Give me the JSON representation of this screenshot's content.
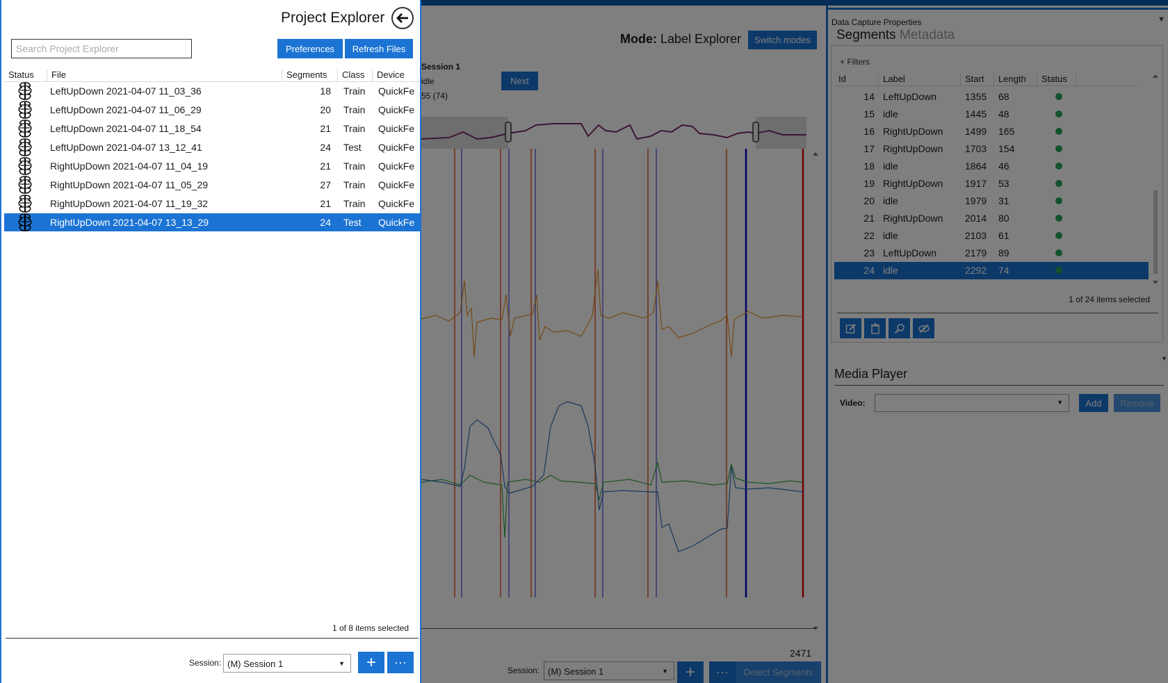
{
  "center": {
    "mode_label": "Mode:",
    "mode_value": "Label Explorer",
    "switch_modes": "Switch modes",
    "session_line": "Session 1",
    "label_line": "idle",
    "range_line": "55 (74)",
    "next": "Next",
    "count": "2471",
    "session_label": "Session:",
    "session_value": "(M) Session 1",
    "add_glyph": "+",
    "more_glyph": "···",
    "detect": "Detect Segments"
  },
  "right": {
    "title": "Data Capture Properties",
    "tab_segments": "Segments",
    "tab_metadata": "Metadata",
    "filters": "+ Filters",
    "columns": [
      "Id",
      "Label",
      "Start",
      "Length",
      "Status"
    ],
    "rows": [
      {
        "id": "14",
        "label": "LeftUpDown",
        "start": "1355",
        "length": "68"
      },
      {
        "id": "15",
        "label": "idle",
        "start": "1445",
        "length": "48"
      },
      {
        "id": "16",
        "label": "RightUpDown",
        "start": "1499",
        "length": "165"
      },
      {
        "id": "17",
        "label": "RightUpDown",
        "start": "1703",
        "length": "154"
      },
      {
        "id": "18",
        "label": "idle",
        "start": "1864",
        "length": "46"
      },
      {
        "id": "19",
        "label": "RightUpDown",
        "start": "1917",
        "length": "53"
      },
      {
        "id": "20",
        "label": "idle",
        "start": "1979",
        "length": "31"
      },
      {
        "id": "21",
        "label": "RightUpDown",
        "start": "2014",
        "length": "80"
      },
      {
        "id": "22",
        "label": "idle",
        "start": "2103",
        "length": "61"
      },
      {
        "id": "23",
        "label": "LeftUpDown",
        "start": "2179",
        "length": "89"
      },
      {
        "id": "24",
        "label": "idle",
        "start": "2292",
        "length": "74"
      }
    ],
    "count": "1 of 24 items selected",
    "media_title": "Media Player",
    "video_label": "Video:",
    "add": "Add",
    "remove": "Remove"
  },
  "explorer": {
    "title": "Project Explorer",
    "search_placeholder": "Search Project Explorer",
    "preferences": "Preferences",
    "refresh": "Refresh Files",
    "columns": [
      "Status",
      "File",
      "Segments",
      "Class",
      "Device"
    ],
    "rows": [
      {
        "file": "LeftUpDown 2021-04-07 11_03_36",
        "segments": "18",
        "class": "Train",
        "device": "QuickFe"
      },
      {
        "file": "LeftUpDown 2021-04-07 11_06_29",
        "segments": "20",
        "class": "Train",
        "device": "QuickFe"
      },
      {
        "file": "LeftUpDown 2021-04-07 11_18_54",
        "segments": "21",
        "class": "Train",
        "device": "QuickFe"
      },
      {
        "file": "LeftUpDown 2021-04-07 13_12_41",
        "segments": "24",
        "class": "Test",
        "device": "QuickFe"
      },
      {
        "file": "RightUpDown 2021-04-07 11_04_19",
        "segments": "21",
        "class": "Train",
        "device": "QuickFe"
      },
      {
        "file": "RightUpDown 2021-04-07 11_05_29",
        "segments": "27",
        "class": "Train",
        "device": "QuickFe"
      },
      {
        "file": "RightUpDown 2021-04-07 11_19_32",
        "segments": "21",
        "class": "Train",
        "device": "QuickFe"
      },
      {
        "file": "RightUpDown 2021-04-07 13_13_29",
        "segments": "24",
        "class": "Test",
        "device": "QuickFe"
      }
    ],
    "selected_index": 7,
    "count": "1 of 8 items selected",
    "session_label": "Session:",
    "session_value": "(M) Session 1",
    "add_glyph": "+",
    "more_glyph": "···"
  },
  "colors": {
    "accent": "#1b73d3",
    "status_ok": "#25a55a"
  }
}
